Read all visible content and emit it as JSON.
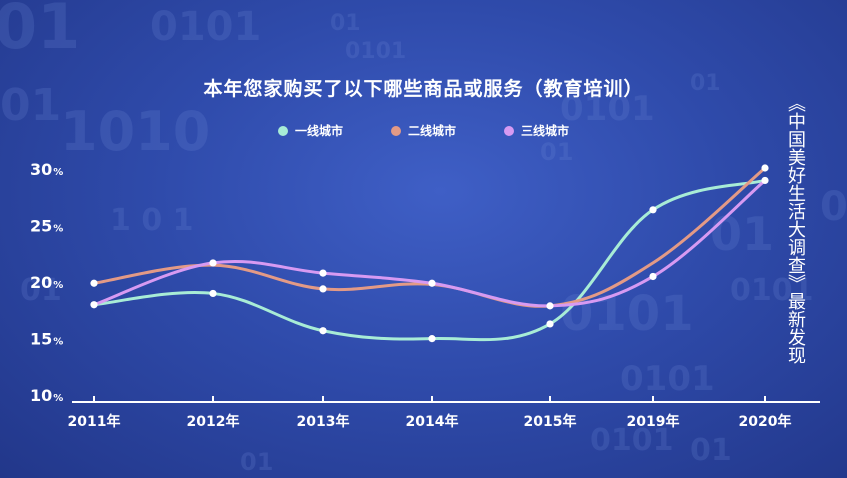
{
  "title": "本年您家购买了以下哪些商品或服务（教育培训）",
  "source_note": "《中国美好生活大调查》最新发现",
  "colors": {
    "background": "#2f4bab",
    "axis": "#ffffff",
    "series_1": "#a8ecd6",
    "series_2": "#e39a86",
    "series_3": "#d79af2"
  },
  "chart_data": {
    "type": "line",
    "title": "本年您家购买了以下哪些商品或服务（教育培训）",
    "x": [
      "2011年",
      "2012年",
      "2013年",
      "2014年",
      "2015年",
      "2019年",
      "2020年"
    ],
    "y_ticks": [
      {
        "value": 10,
        "num": "10",
        "unit": "%"
      },
      {
        "value": 15,
        "num": "15",
        "unit": "%"
      },
      {
        "value": 20,
        "num": "20",
        "unit": "%"
      },
      {
        "value": 25,
        "num": "25",
        "unit": "%"
      },
      {
        "value": 30,
        "num": "30",
        "unit": "%"
      }
    ],
    "ylim": [
      10,
      30
    ],
    "grid": false,
    "legend_position": "top-center",
    "series": [
      {
        "name": "一线城市",
        "color": "#a8ecd6",
        "values": [
          17.9,
          18.9,
          15.6,
          14.9,
          16.2,
          26.3,
          28.9
        ]
      },
      {
        "name": "二线城市",
        "color": "#e39a86",
        "values": [
          19.8,
          21.4,
          19.3,
          19.7,
          17.8,
          21.6,
          30.0
        ]
      },
      {
        "name": "三线城市",
        "color": "#d79af2",
        "values": [
          17.9,
          21.6,
          20.7,
          19.8,
          17.8,
          20.4,
          28.9
        ]
      }
    ]
  }
}
